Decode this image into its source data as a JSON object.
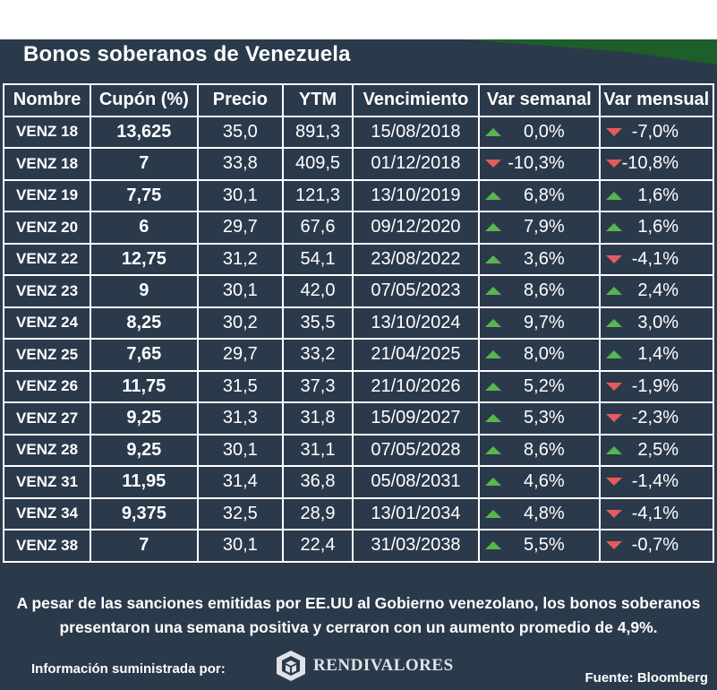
{
  "title": "Bonos soberanos de Venezuela",
  "columns": [
    "Nombre",
    "Cupón (%)",
    "Precio",
    "YTM",
    "Vencimiento",
    "Var semanal",
    "Var mensual"
  ],
  "rows": [
    {
      "name": "VENZ 18",
      "coupon": "13,625",
      "price": "35,0",
      "ytm": "891,3",
      "maturity": "15/08/2018",
      "weekly": "0,0%",
      "weekly_dir": "up",
      "monthly": "-7,0%",
      "monthly_dir": "down"
    },
    {
      "name": "VENZ 18",
      "coupon": "7",
      "price": "33,8",
      "ytm": "409,5",
      "maturity": "01/12/2018",
      "weekly": "-10,3%",
      "weekly_dir": "down",
      "monthly": "-10,8%",
      "monthly_dir": "down"
    },
    {
      "name": "VENZ 19",
      "coupon": "7,75",
      "price": "30,1",
      "ytm": "121,3",
      "maturity": "13/10/2019",
      "weekly": "6,8%",
      "weekly_dir": "up",
      "monthly": "1,6%",
      "monthly_dir": "up"
    },
    {
      "name": "VENZ 20",
      "coupon": "6",
      "price": "29,7",
      "ytm": "67,6",
      "maturity": "09/12/2020",
      "weekly": "7,9%",
      "weekly_dir": "up",
      "monthly": "1,6%",
      "monthly_dir": "up"
    },
    {
      "name": "VENZ 22",
      "coupon": "12,75",
      "price": "31,2",
      "ytm": "54,1",
      "maturity": "23/08/2022",
      "weekly": "3,6%",
      "weekly_dir": "up",
      "monthly": "-4,1%",
      "monthly_dir": "down"
    },
    {
      "name": "VENZ 23",
      "coupon": "9",
      "price": "30,1",
      "ytm": "42,0",
      "maturity": "07/05/2023",
      "weekly": "8,6%",
      "weekly_dir": "up",
      "monthly": "2,4%",
      "monthly_dir": "up"
    },
    {
      "name": "VENZ 24",
      "coupon": "8,25",
      "price": "30,2",
      "ytm": "35,5",
      "maturity": "13/10/2024",
      "weekly": "9,7%",
      "weekly_dir": "up",
      "monthly": "3,0%",
      "monthly_dir": "up"
    },
    {
      "name": "VENZ 25",
      "coupon": "7,65",
      "price": "29,7",
      "ytm": "33,2",
      "maturity": "21/04/2025",
      "weekly": "8,0%",
      "weekly_dir": "up",
      "monthly": "1,4%",
      "monthly_dir": "up"
    },
    {
      "name": "VENZ 26",
      "coupon": "11,75",
      "price": "31,5",
      "ytm": "37,3",
      "maturity": "21/10/2026",
      "weekly": "5,2%",
      "weekly_dir": "up",
      "monthly": "-1,9%",
      "monthly_dir": "down"
    },
    {
      "name": "VENZ 27",
      "coupon": "9,25",
      "price": "31,3",
      "ytm": "31,8",
      "maturity": "15/09/2027",
      "weekly": "5,3%",
      "weekly_dir": "up",
      "monthly": "-2,3%",
      "monthly_dir": "down"
    },
    {
      "name": "VENZ 28",
      "coupon": "9,25",
      "price": "30,1",
      "ytm": "31,1",
      "maturity": "07/05/2028",
      "weekly": "8,6%",
      "weekly_dir": "up",
      "monthly": "2,5%",
      "monthly_dir": "up"
    },
    {
      "name": "VENZ 31",
      "coupon": "11,95",
      "price": "31,4",
      "ytm": "36,8",
      "maturity": "05/08/2031",
      "weekly": "4,6%",
      "weekly_dir": "up",
      "monthly": "-1,4%",
      "monthly_dir": "down"
    },
    {
      "name": "VENZ 34",
      "coupon": "9,375",
      "price": "32,5",
      "ytm": "28,9",
      "maturity": "13/01/2034",
      "weekly": "4,8%",
      "weekly_dir": "up",
      "monthly": "-4,1%",
      "monthly_dir": "down"
    },
    {
      "name": "VENZ 38",
      "coupon": "7",
      "price": "30,1",
      "ytm": "22,4",
      "maturity": "31/03/2038",
      "weekly": "5,5%",
      "weekly_dir": "up",
      "monthly": "-0,7%",
      "monthly_dir": "down"
    }
  ],
  "note_line1": "A pesar de las sanciones emitidas por EE.UU al Gobierno venezolano, los bonos soberanos",
  "note_line2": "presentaron una semana positiva y cerraron con un aumento promedio de 4,9%.",
  "info_label": "Información suministrada por:",
  "logo_text": "RENDIVALORES",
  "source": "Fuente: Bloomberg",
  "colors": {
    "background": "#2b3a4b",
    "up": "#59b54f",
    "down": "#e45b5b",
    "accent_green": "#1d5e2b"
  }
}
